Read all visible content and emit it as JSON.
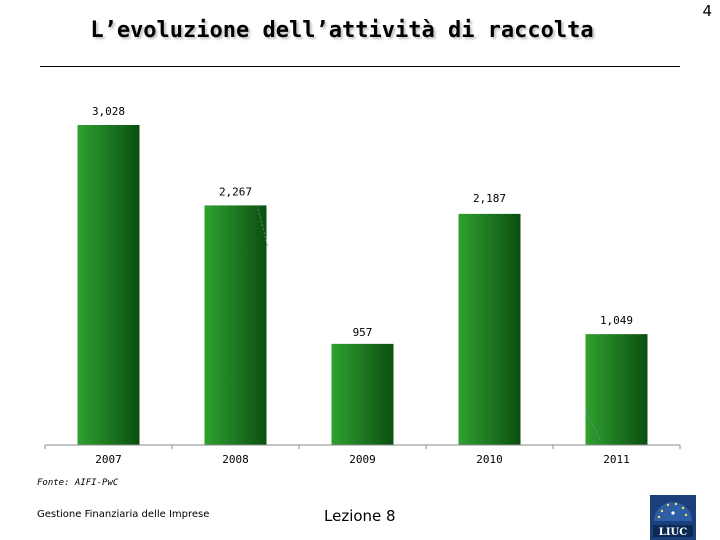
{
  "slide": {
    "title": "L’evoluzione dell’attività di raccolta",
    "page_number": "4",
    "source": "Fonte: AIFI-PwC",
    "footer_left": "Gestione Finanziaria delle Imprese",
    "footer_center": "Lezione 8",
    "logo_text": "LIUC"
  },
  "colors": {
    "bar_dark": "#0b4f10",
    "bar_light": "#2fa12f",
    "axis": "#888888"
  },
  "chart_data": {
    "type": "bar",
    "categories": [
      "2007",
      "2008",
      "2009",
      "2010",
      "2011"
    ],
    "values": [
      3028,
      2267,
      957,
      2187,
      1049
    ],
    "value_labels": [
      "3,028",
      "2,267",
      "957",
      "2,187",
      "1,049"
    ],
    "title": "",
    "xlabel": "",
    "ylabel": "",
    "ylim": [
      0,
      3028
    ],
    "grid": false,
    "legend": "none"
  }
}
